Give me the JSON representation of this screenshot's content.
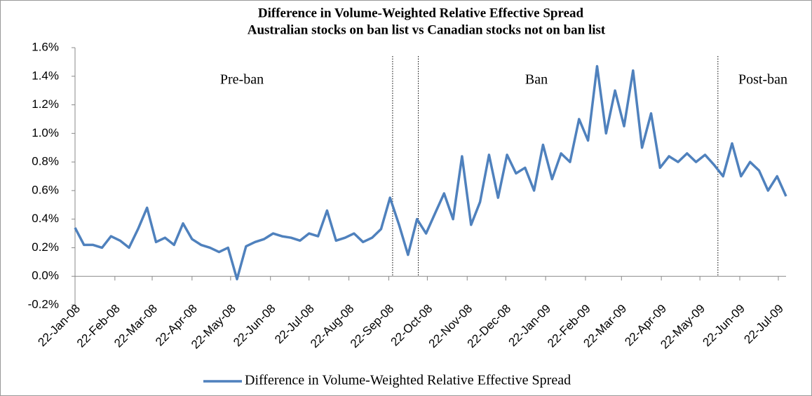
{
  "chart_data": {
    "type": "line",
    "title": "Difference in Volume-Weighted Relative Effective Spread",
    "subtitle": "Australian stocks on ban list vs Canadian stocks not on ban list",
    "x": [
      "2008-01-22",
      "2008-01-29",
      "2008-02-05",
      "2008-02-12",
      "2008-02-19",
      "2008-02-26",
      "2008-03-04",
      "2008-03-11",
      "2008-03-18",
      "2008-03-25",
      "2008-04-01",
      "2008-04-08",
      "2008-04-15",
      "2008-04-22",
      "2008-04-29",
      "2008-05-06",
      "2008-05-13",
      "2008-05-20",
      "2008-05-27",
      "2008-06-03",
      "2008-06-10",
      "2008-06-17",
      "2008-06-24",
      "2008-07-01",
      "2008-07-08",
      "2008-07-15",
      "2008-07-22",
      "2008-07-29",
      "2008-08-05",
      "2008-08-12",
      "2008-08-19",
      "2008-08-26",
      "2008-09-02",
      "2008-09-09",
      "2008-09-16",
      "2008-09-23",
      "2008-09-30",
      "2008-10-07",
      "2008-10-14",
      "2008-10-21",
      "2008-10-28",
      "2008-11-04",
      "2008-11-11",
      "2008-11-18",
      "2008-11-25",
      "2008-12-02",
      "2008-12-09",
      "2008-12-16",
      "2008-12-23",
      "2008-12-30",
      "2009-01-06",
      "2009-01-13",
      "2009-01-20",
      "2009-01-27",
      "2009-02-03",
      "2009-02-10",
      "2009-02-17",
      "2009-02-24",
      "2009-03-03",
      "2009-03-10",
      "2009-03-17",
      "2009-03-24",
      "2009-03-31",
      "2009-04-07",
      "2009-04-14",
      "2009-04-21",
      "2009-04-28",
      "2009-05-05",
      "2009-05-12",
      "2009-05-19",
      "2009-05-26",
      "2009-06-02",
      "2009-06-09",
      "2009-06-16",
      "2009-06-23",
      "2009-06-30",
      "2009-07-07",
      "2009-07-14",
      "2009-07-21",
      "2009-07-28"
    ],
    "series": [
      {
        "name": "Difference in Volume-Weighted Relative Effective Spread",
        "color": "#4f81bd",
        "values": [
          0.34,
          0.22,
          0.22,
          0.2,
          0.28,
          0.25,
          0.2,
          0.33,
          0.48,
          0.24,
          0.27,
          0.22,
          0.37,
          0.26,
          0.22,
          0.2,
          0.17,
          0.2,
          -0.02,
          0.21,
          0.24,
          0.26,
          0.3,
          0.28,
          0.27,
          0.25,
          0.3,
          0.28,
          0.46,
          0.25,
          0.27,
          0.3,
          0.24,
          0.27,
          0.33,
          0.55,
          0.36,
          0.15,
          0.4,
          0.3,
          0.44,
          0.58,
          0.4,
          0.84,
          0.36,
          0.52,
          0.85,
          0.55,
          0.85,
          0.72,
          0.76,
          0.6,
          0.92,
          0.68,
          0.86,
          0.8,
          1.1,
          0.95,
          1.47,
          1.0,
          1.3,
          1.05,
          1.44,
          0.9,
          1.14,
          0.76,
          0.84,
          0.8,
          0.86,
          0.8,
          0.85,
          0.78,
          0.7,
          0.93,
          0.7,
          0.8,
          0.74,
          0.6,
          0.7,
          0.56
        ]
      }
    ],
    "xlim": [
      "2008-01-22",
      "2009-07-28"
    ],
    "xticks": [
      {
        "value": "2008-01-22",
        "label": "22-Jan-08"
      },
      {
        "value": "2008-02-22",
        "label": "22-Feb-08"
      },
      {
        "value": "2008-03-22",
        "label": "22-Mar-08"
      },
      {
        "value": "2008-04-22",
        "label": "22-Apr-08"
      },
      {
        "value": "2008-05-22",
        "label": "22-May-08"
      },
      {
        "value": "2008-06-22",
        "label": "22-Jun-08"
      },
      {
        "value": "2008-07-22",
        "label": "22-Jul-08"
      },
      {
        "value": "2008-08-22",
        "label": "22-Aug-08"
      },
      {
        "value": "2008-09-22",
        "label": "22-Sep-08"
      },
      {
        "value": "2008-10-22",
        "label": "22-Oct-08"
      },
      {
        "value": "2008-11-22",
        "label": "22-Nov-08"
      },
      {
        "value": "2008-12-22",
        "label": "22-Dec-08"
      },
      {
        "value": "2009-01-22",
        "label": "22-Jan-09"
      },
      {
        "value": "2009-02-22",
        "label": "22-Feb-09"
      },
      {
        "value": "2009-03-22",
        "label": "22-Mar-09"
      },
      {
        "value": "2009-04-22",
        "label": "22-Apr-09"
      },
      {
        "value": "2009-05-22",
        "label": "22-May-09"
      },
      {
        "value": "2009-06-22",
        "label": "22-Jun-09"
      },
      {
        "value": "2009-07-22",
        "label": "22-Jul-09"
      }
    ],
    "ylim": [
      -0.2,
      1.6
    ],
    "yticks": [
      {
        "value": -0.2,
        "label": "-0.2%"
      },
      {
        "value": 0,
        "label": "0.0%"
      },
      {
        "value": 0.2,
        "label": "0.2%"
      },
      {
        "value": 0.4,
        "label": "0.4%"
      },
      {
        "value": 0.6,
        "label": "0.6%"
      },
      {
        "value": 0.8,
        "label": "0.8%"
      },
      {
        "value": 1.0,
        "label": "1.0%"
      },
      {
        "value": 1.2,
        "label": "1.2%"
      },
      {
        "value": 1.4,
        "label": "1.4%"
      },
      {
        "value": 1.6,
        "label": "1.6%"
      }
    ],
    "vlines": [
      "2008-09-25",
      "2008-10-15",
      "2009-06-05"
    ],
    "annotations": [
      "Pre-ban",
      "Ban",
      "Post-ban"
    ],
    "legend": "bottom"
  }
}
